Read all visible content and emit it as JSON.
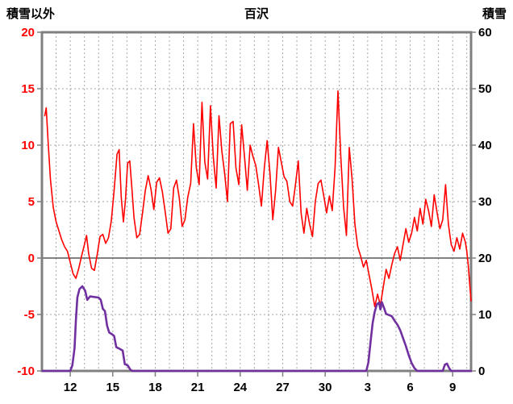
{
  "header": {
    "left_axis_title": "積雪以外",
    "chart_title": "百沢",
    "right_axis_title": "積雪"
  },
  "colors": {
    "temperature_series": "#ff0000",
    "snow_series": "#7030a0",
    "frame": "#808080",
    "grid": "#a6a6a6",
    "zero_line": "#595959",
    "left_tick_label": "#ff0000",
    "right_tick_label": "#000000",
    "x_tick_label": "#000000",
    "tick_mark": "#808080"
  },
  "chart_data": {
    "type": "line",
    "title": "百沢",
    "left_axis": {
      "title": "積雪以外",
      "min": -10,
      "max": 20,
      "ticks": [
        20,
        15,
        10,
        5,
        0,
        -5,
        -10
      ]
    },
    "right_axis": {
      "title": "積雪",
      "min": 0,
      "max": 60,
      "ticks": [
        60,
        50,
        40,
        30,
        20,
        10,
        0
      ]
    },
    "x_axis": {
      "min": 10,
      "max": 40.3,
      "tick_positions": [
        12,
        15,
        18,
        21,
        24,
        27,
        30,
        33,
        36,
        39
      ],
      "tick_labels": [
        "12",
        "15",
        "18",
        "21",
        "24",
        "27",
        "30",
        "3",
        "6",
        "9"
      ],
      "gridline_step": 1,
      "note_visible_labels_only": "day-of-month labels"
    },
    "grid": {
      "vertical_dashed": true,
      "horizontal_dashed_at_left_values": [
        15,
        10,
        5,
        -5
      ],
      "zero_line_left_value": 0
    },
    "series": [
      {
        "name": "積雪以外",
        "axis": "left",
        "color": "#ff0000",
        "width": 1.6,
        "points": [
          [
            10.2,
            12.6
          ],
          [
            10.3,
            13.3
          ],
          [
            10.45,
            10.0
          ],
          [
            10.6,
            7.0
          ],
          [
            10.8,
            4.5
          ],
          [
            11.0,
            3.2
          ],
          [
            11.2,
            2.4
          ],
          [
            11.4,
            1.6
          ],
          [
            11.6,
            1.0
          ],
          [
            11.8,
            0.6
          ],
          [
            12.0,
            -0.4
          ],
          [
            12.2,
            -1.4
          ],
          [
            12.4,
            -1.8
          ],
          [
            12.6,
            -0.9
          ],
          [
            12.8,
            0.2
          ],
          [
            13.0,
            1.2
          ],
          [
            13.15,
            2.0
          ],
          [
            13.3,
            0.4
          ],
          [
            13.5,
            -0.9
          ],
          [
            13.7,
            -1.1
          ],
          [
            13.9,
            0.3
          ],
          [
            14.1,
            1.9
          ],
          [
            14.3,
            2.1
          ],
          [
            14.5,
            1.3
          ],
          [
            14.7,
            1.8
          ],
          [
            14.9,
            3.3
          ],
          [
            15.1,
            6.0
          ],
          [
            15.3,
            9.2
          ],
          [
            15.45,
            9.6
          ],
          [
            15.6,
            5.4
          ],
          [
            15.75,
            3.2
          ],
          [
            15.9,
            5.2
          ],
          [
            16.05,
            8.4
          ],
          [
            16.2,
            8.6
          ],
          [
            16.35,
            6.2
          ],
          [
            16.5,
            3.6
          ],
          [
            16.7,
            1.8
          ],
          [
            16.9,
            2.1
          ],
          [
            17.1,
            4.0
          ],
          [
            17.3,
            6.0
          ],
          [
            17.5,
            7.3
          ],
          [
            17.7,
            6.1
          ],
          [
            17.9,
            4.3
          ],
          [
            18.1,
            6.7
          ],
          [
            18.3,
            7.1
          ],
          [
            18.5,
            5.9
          ],
          [
            18.7,
            4.1
          ],
          [
            18.9,
            2.2
          ],
          [
            19.1,
            2.6
          ],
          [
            19.3,
            6.2
          ],
          [
            19.5,
            6.9
          ],
          [
            19.7,
            5.3
          ],
          [
            19.9,
            2.8
          ],
          [
            20.1,
            3.4
          ],
          [
            20.3,
            5.4
          ],
          [
            20.5,
            6.6
          ],
          [
            20.7,
            11.9
          ],
          [
            20.9,
            8.0
          ],
          [
            21.1,
            6.5
          ],
          [
            21.3,
            13.8
          ],
          [
            21.5,
            8.5
          ],
          [
            21.7,
            7.0
          ],
          [
            21.9,
            13.5
          ],
          [
            22.1,
            9.0
          ],
          [
            22.3,
            6.2
          ],
          [
            22.5,
            12.6
          ],
          [
            22.7,
            9.5
          ],
          [
            22.9,
            7.5
          ],
          [
            23.1,
            5.0
          ],
          [
            23.3,
            11.9
          ],
          [
            23.5,
            12.1
          ],
          [
            23.7,
            8.0
          ],
          [
            23.9,
            6.5
          ],
          [
            24.1,
            11.8
          ],
          [
            24.3,
            9.0
          ],
          [
            24.5,
            6.0
          ],
          [
            24.7,
            10.0
          ],
          [
            24.9,
            9.0
          ],
          [
            25.1,
            8.2
          ],
          [
            25.3,
            6.5
          ],
          [
            25.5,
            4.6
          ],
          [
            25.7,
            8.0
          ],
          [
            25.9,
            10.4
          ],
          [
            26.1,
            7.5
          ],
          [
            26.3,
            3.4
          ],
          [
            26.5,
            6.0
          ],
          [
            26.7,
            9.8
          ],
          [
            26.9,
            8.5
          ],
          [
            27.1,
            7.2
          ],
          [
            27.3,
            6.8
          ],
          [
            27.5,
            5.0
          ],
          [
            27.7,
            4.6
          ],
          [
            27.9,
            6.5
          ],
          [
            28.1,
            8.6
          ],
          [
            28.3,
            4.0
          ],
          [
            28.5,
            2.2
          ],
          [
            28.7,
            4.4
          ],
          [
            28.9,
            3.0
          ],
          [
            29.1,
            1.9
          ],
          [
            29.3,
            5.0
          ],
          [
            29.5,
            6.6
          ],
          [
            29.7,
            6.9
          ],
          [
            29.9,
            5.5
          ],
          [
            30.1,
            4.0
          ],
          [
            30.3,
            5.5
          ],
          [
            30.5,
            4.2
          ],
          [
            30.7,
            8.0
          ],
          [
            30.9,
            14.8
          ],
          [
            31.1,
            9.0
          ],
          [
            31.3,
            4.5
          ],
          [
            31.5,
            2.0
          ],
          [
            31.7,
            9.8
          ],
          [
            31.9,
            7.0
          ],
          [
            32.1,
            3.0
          ],
          [
            32.3,
            1.0
          ],
          [
            32.5,
            0.2
          ],
          [
            32.7,
            -0.8
          ],
          [
            32.9,
            -0.2
          ],
          [
            33.1,
            -1.5
          ],
          [
            33.3,
            -2.8
          ],
          [
            33.5,
            -4.3
          ],
          [
            33.7,
            -3.2
          ],
          [
            33.9,
            -4.2
          ],
          [
            34.1,
            -2.6
          ],
          [
            34.3,
            -1.0
          ],
          [
            34.5,
            -1.8
          ],
          [
            34.7,
            -0.6
          ],
          [
            34.9,
            0.4
          ],
          [
            35.1,
            1.0
          ],
          [
            35.3,
            -0.2
          ],
          [
            35.5,
            1.2
          ],
          [
            35.7,
            2.6
          ],
          [
            35.9,
            1.4
          ],
          [
            36.1,
            2.2
          ],
          [
            36.3,
            3.6
          ],
          [
            36.5,
            2.4
          ],
          [
            36.7,
            4.4
          ],
          [
            36.9,
            3.0
          ],
          [
            37.1,
            5.2
          ],
          [
            37.3,
            4.2
          ],
          [
            37.5,
            2.8
          ],
          [
            37.7,
            5.6
          ],
          [
            37.9,
            4.0
          ],
          [
            38.1,
            2.6
          ],
          [
            38.3,
            3.4
          ],
          [
            38.5,
            6.5
          ],
          [
            38.7,
            3.0
          ],
          [
            38.9,
            1.2
          ],
          [
            39.1,
            0.6
          ],
          [
            39.3,
            1.8
          ],
          [
            39.5,
            0.8
          ],
          [
            39.7,
            2.2
          ],
          [
            39.9,
            1.4
          ],
          [
            40.0,
            0.6
          ],
          [
            40.1,
            -0.6
          ],
          [
            40.2,
            -2.2
          ],
          [
            40.3,
            -3.8
          ]
        ]
      },
      {
        "name": "積雪",
        "axis": "right",
        "color": "#7030a0",
        "width": 2.6,
        "points": [
          [
            10.05,
            0
          ],
          [
            12.0,
            0
          ],
          [
            12.15,
            1
          ],
          [
            12.3,
            4
          ],
          [
            12.4,
            9
          ],
          [
            12.5,
            13
          ],
          [
            12.65,
            14.5
          ],
          [
            12.85,
            15
          ],
          [
            13.05,
            14.2
          ],
          [
            13.2,
            12.6
          ],
          [
            13.4,
            13.2
          ],
          [
            13.7,
            13.1
          ],
          [
            14.0,
            13.0
          ],
          [
            14.15,
            12.6
          ],
          [
            14.3,
            11.0
          ],
          [
            14.45,
            10.6
          ],
          [
            14.6,
            8.0
          ],
          [
            14.75,
            6.8
          ],
          [
            14.95,
            6.5
          ],
          [
            15.1,
            6.2
          ],
          [
            15.25,
            4.2
          ],
          [
            15.5,
            3.9
          ],
          [
            15.7,
            3.6
          ],
          [
            15.85,
            1.2
          ],
          [
            16.05,
            1.0
          ],
          [
            16.25,
            0.2
          ],
          [
            16.4,
            0
          ],
          [
            32.9,
            0
          ],
          [
            33.05,
            1.5
          ],
          [
            33.2,
            5
          ],
          [
            33.35,
            8.5
          ],
          [
            33.5,
            10.5
          ],
          [
            33.65,
            11.8
          ],
          [
            33.8,
            12.1
          ],
          [
            33.9,
            10.9
          ],
          [
            34.0,
            12.2
          ],
          [
            34.15,
            11.2
          ],
          [
            34.3,
            10.1
          ],
          [
            34.5,
            9.9
          ],
          [
            34.7,
            9.7
          ],
          [
            34.9,
            8.9
          ],
          [
            35.1,
            8.2
          ],
          [
            35.3,
            7.2
          ],
          [
            35.5,
            5.8
          ],
          [
            35.7,
            4.4
          ],
          [
            35.9,
            2.8
          ],
          [
            36.1,
            1.4
          ],
          [
            36.3,
            0.5
          ],
          [
            36.5,
            0
          ],
          [
            38.3,
            0
          ],
          [
            38.45,
            1.1
          ],
          [
            38.6,
            1.3
          ],
          [
            38.75,
            0.5
          ],
          [
            38.9,
            0
          ],
          [
            40.3,
            0
          ]
        ]
      }
    ]
  }
}
